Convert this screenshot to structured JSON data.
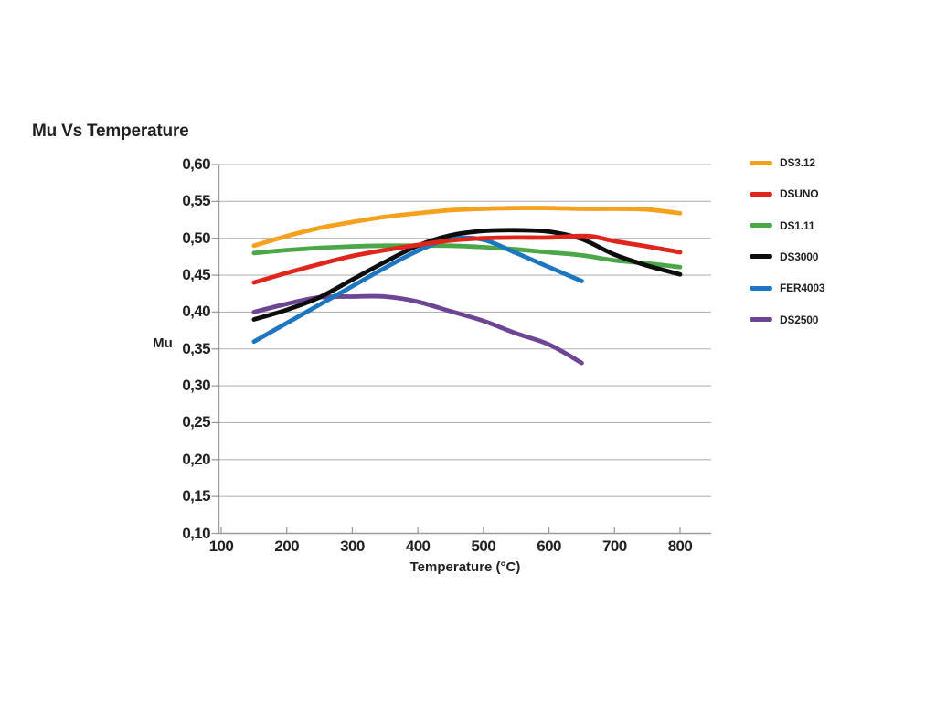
{
  "page": {
    "background": "#ffffff",
    "text_color": "#231f20"
  },
  "chart": {
    "title": "Mu Vs Temperature",
    "y_axis_label": "Mu",
    "x_axis_label": "Temperature (°C)",
    "y_tick_labels": [
      "0,60",
      "0,55",
      "0,50",
      "0,45",
      "0,40",
      "0,35",
      "0,30",
      "0,25",
      "0,20",
      "0,15",
      "0,10"
    ],
    "x_tick_labels": [
      "100",
      "200",
      "300",
      "400",
      "500",
      "600",
      "700",
      "800"
    ],
    "grid_color": "#b5b5b5",
    "axis_color": "#9b9b9b"
  },
  "chart_data": {
    "type": "line",
    "title": "Mu Vs Temperature",
    "xlabel": "Temperature (°C)",
    "ylabel": "Mu",
    "xlim": [
      100,
      850
    ],
    "ylim": [
      0.1,
      0.6
    ],
    "x_ticks": [
      100,
      200,
      300,
      400,
      500,
      600,
      700,
      800
    ],
    "y_ticks": [
      0.6,
      0.55,
      0.5,
      0.45,
      0.4,
      0.35,
      0.3,
      0.25,
      0.2,
      0.15,
      0.1
    ],
    "decimal_separator": ",",
    "grid": "horizontal",
    "legend_position": "right",
    "line_width": 4.8,
    "series": [
      {
        "name": "DS3.12",
        "color": "#F5A11E",
        "x": [
          150,
          200,
          250,
          300,
          350,
          400,
          450,
          500,
          550,
          600,
          650,
          700,
          750,
          800
        ],
        "values": [
          0.49,
          0.503,
          0.514,
          0.522,
          0.529,
          0.534,
          0.538,
          0.54,
          0.541,
          0.541,
          0.54,
          0.54,
          0.539,
          0.534
        ]
      },
      {
        "name": "DSUNO",
        "color": "#E0261C",
        "x": [
          150,
          200,
          250,
          300,
          350,
          400,
          450,
          500,
          550,
          600,
          660,
          700,
          750,
          800
        ],
        "values": [
          0.44,
          0.453,
          0.465,
          0.476,
          0.484,
          0.491,
          0.497,
          0.5,
          0.501,
          0.501,
          0.503,
          0.496,
          0.489,
          0.481
        ]
      },
      {
        "name": "DS1.11",
        "color": "#4BA748",
        "x": [
          150,
          200,
          250,
          300,
          350,
          400,
          450,
          500,
          550,
          600,
          650,
          700,
          750,
          800
        ],
        "values": [
          0.48,
          0.484,
          0.487,
          0.489,
          0.49,
          0.49,
          0.49,
          0.488,
          0.485,
          0.481,
          0.477,
          0.47,
          0.466,
          0.461
        ]
      },
      {
        "name": "DS3000",
        "color": "#0d0d0d",
        "x": [
          150,
          200,
          250,
          300,
          350,
          400,
          450,
          500,
          550,
          600,
          650,
          700,
          750,
          800
        ],
        "values": [
          0.39,
          0.403,
          0.42,
          0.444,
          0.468,
          0.49,
          0.504,
          0.51,
          0.511,
          0.509,
          0.499,
          0.478,
          0.463,
          0.451
        ]
      },
      {
        "name": "FER4003",
        "color": "#1C77C0",
        "x": [
          150,
          200,
          250,
          300,
          350,
          400,
          450,
          500,
          550,
          600,
          650
        ],
        "values": [
          0.36,
          0.385,
          0.41,
          0.435,
          0.46,
          0.483,
          0.499,
          0.498,
          0.48,
          0.461,
          0.442
        ]
      },
      {
        "name": "DS2500",
        "color": "#6D4594",
        "x": [
          150,
          200,
          250,
          300,
          350,
          400,
          450,
          500,
          550,
          600,
          650
        ],
        "values": [
          0.4,
          0.411,
          0.42,
          0.421,
          0.421,
          0.414,
          0.401,
          0.388,
          0.371,
          0.356,
          0.331
        ]
      }
    ]
  }
}
